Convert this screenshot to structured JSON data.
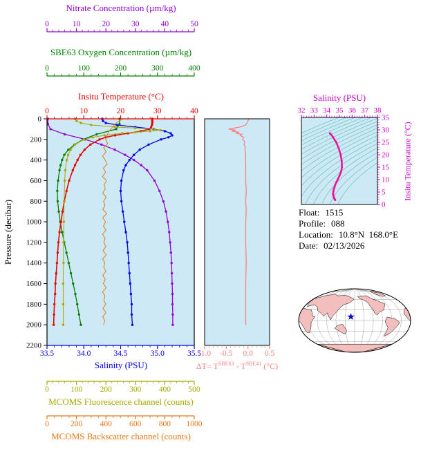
{
  "colors": {
    "plot_bg": "#CDE9F6",
    "nitrate": "#9400D3",
    "oxygen": "#008000",
    "temperature": "#E80000",
    "salinity": "#0000EE",
    "fluorescence": "#A8A800",
    "backscatter": "#E87818",
    "delta_t": "#FF8080",
    "ts_curve": "#EE1199",
    "ts_axis": "#CC00CC",
    "contour": "#66BFBF",
    "land": "#F2BEBE",
    "marker": "#0000CC",
    "frame": "#000000"
  },
  "titles": {
    "nitrate": "Nitrate Concentration (µm/kg)",
    "oxygen": "SBE63 Oxygen Concentration (µm/kg)",
    "temperature": "Insitu Temperature (°C)",
    "salinity": "Salinity (PSU)",
    "fluorescence": "MCOMS Fluorescence channel (counts)",
    "backscatter": "MCOMS Backscatter channel (counts)",
    "pressure": "Pressure (decibar)",
    "ts_salinity": "Salinity (PSU)",
    "ts_temperature": "Insitu Temperature (°C)",
    "deltaT": {
      "prefix": "ΔT= T",
      "sup1": "SBE63",
      "mid": " - T",
      "sup2": "SBE41",
      "suffix": " (°C)"
    }
  },
  "info": {
    "float_label": "Float:",
    "float_value": "1515",
    "profile_label": "Profile:",
    "profile_value": "088",
    "location_label": "Location:",
    "location_value": "10.8°N  168.0°E",
    "date_label": "Date:",
    "date_value": "02/13/2026"
  },
  "map": {
    "marker_lat": 10.8,
    "marker_lon": 168.0,
    "marker_color": "#0000CC"
  },
  "chart_data": [
    {
      "type": "line",
      "title": "Multi-parameter float profile",
      "ylabel": "Pressure (decibar)",
      "ylim": [
        0,
        2200
      ],
      "y_ticks": [
        0,
        200,
        400,
        600,
        800,
        1000,
        1200,
        1400,
        1600,
        1800,
        2000,
        2200
      ],
      "series": [
        {
          "name": "Nitrate Concentration (µm/kg)",
          "color": "#9400D3",
          "xlim": [
            0,
            50
          ],
          "minor": 2,
          "markers": true,
          "width": 1.3,
          "ticks": [
            [
              0,
              "0"
            ],
            [
              10,
              "10"
            ],
            [
              20,
              "20"
            ],
            [
              30,
              "30"
            ],
            [
              40,
              "40"
            ],
            [
              50,
              "50"
            ]
          ],
          "pressure": [
            0,
            50,
            100,
            150,
            200,
            250,
            300,
            350,
            400,
            450,
            500,
            600,
            700,
            800,
            900,
            1000,
            1100,
            1200,
            1300,
            1400,
            1500,
            1600,
            1700,
            1800,
            1900,
            2000
          ],
          "values": [
            0.3,
            0.3,
            1.2,
            6,
            13,
            18.5,
            23,
            26.5,
            29.5,
            32,
            34,
            36.5,
            38.2,
            39.5,
            40.4,
            41,
            41.5,
            41.8,
            42.1,
            42.3,
            42.4,
            42.5,
            42.6,
            42.6,
            42.7,
            42.7
          ]
        },
        {
          "name": "SBE63 Oxygen Concentration (µm/kg)",
          "color": "#008000",
          "xlim": [
            0,
            400
          ],
          "minor": 20,
          "markers": true,
          "width": 1.3,
          "ticks": [
            [
              0,
              "0"
            ],
            [
              100,
              "100"
            ],
            [
              200,
              "200"
            ],
            [
              300,
              "300"
            ],
            [
              400,
              "400"
            ]
          ],
          "pressure": [
            0,
            50,
            100,
            150,
            200,
            250,
            300,
            350,
            400,
            450,
            500,
            600,
            700,
            800,
            900,
            1000,
            1100,
            1200,
            1300,
            1400,
            1500,
            1600,
            1700,
            1800,
            1900,
            2000
          ],
          "values": [
            197,
            197,
            188,
            135,
            98,
            75,
            58,
            47,
            41,
            37,
            34,
            30,
            28,
            29,
            32,
            36,
            41,
            47,
            53,
            59,
            65,
            71,
            77,
            82,
            87,
            92
          ]
        },
        {
          "name": "Insitu Temperature (°C)",
          "color": "#E80000",
          "xlim": [
            0,
            40
          ],
          "minor": 2,
          "markers": true,
          "width": 1.6,
          "ticks": [
            [
              0,
              "0"
            ],
            [
              10,
              "10"
            ],
            [
              20,
              "20"
            ],
            [
              30,
              "30"
            ],
            [
              40,
              "40"
            ]
          ],
          "pressure": [
            0,
            20,
            40,
            60,
            80,
            100,
            120,
            140,
            160,
            180,
            200,
            250,
            300,
            350,
            400,
            450,
            500,
            600,
            700,
            800,
            900,
            1000,
            1100,
            1200,
            1300,
            1400,
            1500,
            1600,
            1700,
            1800,
            1900,
            2000
          ],
          "values": [
            28.6,
            28.6,
            28.6,
            28.5,
            28.3,
            27.8,
            25.5,
            22.0,
            18.5,
            16.0,
            14.3,
            11.8,
            10.2,
            9.1,
            8.3,
            7.6,
            7.0,
            6.0,
            5.3,
            4.7,
            4.2,
            3.8,
            3.4,
            3.1,
            2.9,
            2.7,
            2.5,
            2.3,
            2.2,
            2.0,
            1.9,
            1.8
          ]
        },
        {
          "name": "Salinity (PSU)",
          "color": "#0000EE",
          "xlim": [
            33.5,
            35.5
          ],
          "minor": 0.1,
          "markers": true,
          "width": 1.3,
          "ticks": [
            [
              33.5,
              "33.5"
            ],
            [
              34,
              "34.0"
            ],
            [
              34.5,
              "34.5"
            ],
            [
              35,
              "35.0"
            ],
            [
              35.5,
              "35.5"
            ]
          ],
          "pressure": [
            0,
            20,
            40,
            60,
            80,
            100,
            120,
            140,
            160,
            180,
            200,
            250,
            300,
            350,
            400,
            450,
            500,
            600,
            700,
            800,
            900,
            1000,
            1100,
            1200,
            1300,
            1400,
            1500,
            1600,
            1700,
            1800,
            1900,
            2000
          ],
          "values": [
            34.25,
            34.26,
            34.3,
            34.45,
            34.7,
            34.95,
            35.1,
            35.18,
            35.2,
            35.15,
            35.05,
            34.88,
            34.76,
            34.68,
            34.62,
            34.57,
            34.54,
            34.51,
            34.5,
            34.51,
            34.53,
            34.55,
            34.57,
            34.59,
            34.6,
            34.61,
            34.62,
            34.63,
            34.64,
            34.65,
            34.65,
            34.66
          ]
        },
        {
          "name": "MCOMS Fluorescence channel (counts)",
          "color": "#A8A800",
          "xlim": [
            0,
            500
          ],
          "minor": 20,
          "markers": true,
          "width": 1,
          "ticks": [
            [
              0,
              "0"
            ],
            [
              100,
              "100"
            ],
            [
              200,
              "200"
            ],
            [
              300,
              "300"
            ],
            [
              400,
              "400"
            ],
            [
              500,
              "500"
            ]
          ],
          "pressure": [
            0,
            20,
            40,
            60,
            80,
            90,
            100,
            110,
            120,
            130,
            140,
            160,
            180,
            200,
            250,
            300,
            350,
            400,
            500,
            600,
            800,
            1000,
            1200,
            1400,
            1600,
            1800,
            2000
          ],
          "values": [
            95,
            100,
            115,
            150,
            230,
            300,
            365,
            385,
            350,
            300,
            255,
            195,
            155,
            125,
            95,
            80,
            72,
            67,
            62,
            60,
            58,
            57,
            56,
            56,
            55,
            55,
            55
          ]
        },
        {
          "name": "MCOMS Backscatter channel (counts)",
          "color": "#E87818",
          "xlim": [
            0,
            1000
          ],
          "minor": 50,
          "markers": false,
          "width": 1,
          "ticks": [
            [
              0,
              "0"
            ],
            [
              200,
              "200"
            ],
            [
              400,
              "400"
            ],
            [
              600,
              "600"
            ],
            [
              800,
              "800"
            ],
            [
              1000,
              "1000"
            ]
          ],
          "pressure": [
            0,
            40,
            80,
            120,
            160,
            200,
            240,
            280,
            320,
            360,
            400,
            440,
            480,
            520,
            560,
            600,
            640,
            680,
            720,
            760,
            800,
            840,
            880,
            920,
            960,
            1000,
            1040,
            1080,
            1120,
            1160,
            1200,
            1240,
            1280,
            1320,
            1360,
            1400,
            1440,
            1480,
            1520,
            1560,
            1600,
            1640,
            1680,
            1720,
            1760,
            1800,
            1840,
            1880,
            1920,
            1960,
            2000
          ],
          "values": [
            515,
            470,
            445,
            420,
            408,
            398,
            412,
            385,
            402,
            378,
            395,
            408,
            382,
            398,
            376,
            404,
            388,
            396,
            378,
            402,
            384,
            394,
            380,
            405,
            379,
            397,
            383,
            401,
            377,
            395,
            386,
            399,
            380,
            403,
            378,
            393,
            385,
            400,
            379,
            396,
            382,
            402,
            377,
            394,
            386,
            398,
            380,
            401,
            379,
            392,
            384
          ]
        }
      ]
    },
    {
      "type": "line",
      "title": "ΔT= TSBE63 - TSBE41 (°C)",
      "color": "#FF8080",
      "xlim": [
        -1.0,
        0.5
      ],
      "minor": 0.1,
      "x_ticks": [
        [
          -1,
          "-1.0"
        ],
        [
          -0.5,
          "-0.5"
        ],
        [
          0,
          "0.0"
        ],
        [
          0.5,
          "0.5"
        ]
      ],
      "pressure": [
        0,
        20,
        40,
        60,
        80,
        90,
        100,
        110,
        120,
        130,
        140,
        150,
        160,
        180,
        200,
        225,
        250,
        275,
        300,
        350,
        400,
        450,
        500,
        600,
        700,
        800,
        900,
        1000,
        1200,
        1400,
        1600,
        1800,
        2000
      ],
      "values": [
        0.02,
        0.0,
        -0.02,
        -0.05,
        -0.18,
        -0.32,
        -0.45,
        -0.28,
        -0.38,
        -0.2,
        -0.28,
        -0.14,
        -0.18,
        -0.1,
        -0.12,
        -0.07,
        -0.09,
        -0.06,
        -0.07,
        -0.05,
        -0.06,
        -0.05,
        -0.05,
        -0.05,
        -0.04,
        -0.05,
        -0.04,
        -0.05,
        -0.05,
        -0.04,
        -0.05,
        -0.05,
        -0.05
      ]
    },
    {
      "type": "line",
      "title": "T-S diagram",
      "xlabel": "Salinity (PSU)",
      "ylabel": "Insitu Temperature (°C)",
      "color": "#EE1199",
      "xlim": [
        32,
        38
      ],
      "ylim": [
        0,
        35
      ],
      "x_minor": 0.2,
      "y_minor": 1,
      "x_ticks": [
        [
          32,
          "32"
        ],
        [
          33,
          "33"
        ],
        [
          34,
          "34"
        ],
        [
          35,
          "35"
        ],
        [
          36,
          "36"
        ],
        [
          37,
          "37"
        ],
        [
          38,
          "38"
        ]
      ],
      "y_ticks": [
        [
          0,
          "0"
        ],
        [
          5,
          "5"
        ],
        [
          10,
          "10"
        ],
        [
          15,
          "15"
        ],
        [
          20,
          "20"
        ],
        [
          25,
          "25"
        ],
        [
          30,
          "30"
        ],
        [
          35,
          "35"
        ]
      ],
      "sigma_levels": [
        20,
        20.5,
        21,
        21.5,
        22,
        22.5,
        23,
        23.5,
        24,
        24.5,
        25,
        25.5,
        26,
        26.5,
        27,
        27.5,
        28
      ],
      "salinity": [
        34.25,
        34.3,
        34.5,
        34.75,
        34.95,
        35.1,
        35.18,
        35.2,
        35.12,
        35.0,
        34.88,
        34.76,
        34.66,
        34.6,
        34.55,
        34.52,
        34.5,
        34.51,
        34.54,
        34.57,
        34.6,
        34.63,
        34.66
      ],
      "temperature": [
        28.6,
        28.4,
        27.0,
        25.0,
        22.5,
        20.0,
        17.5,
        15.0,
        13.0,
        11.5,
        10.2,
        9.0,
        7.8,
        6.8,
        6.0,
        5.2,
        4.4,
        3.8,
        3.2,
        2.8,
        2.4,
        2.1,
        1.8
      ]
    }
  ]
}
